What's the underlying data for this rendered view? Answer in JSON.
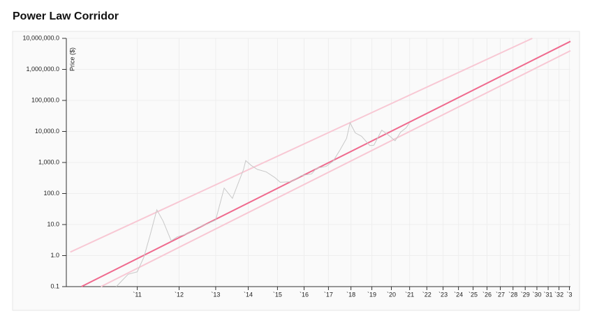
{
  "chart_data": {
    "type": "line",
    "title": "Power Law Corridor",
    "y_label": "Price ($)",
    "ylog": true,
    "xlog": true,
    "grid": true,
    "ylim": [
      0.1,
      10000000
    ],
    "yticks": [
      0.1,
      {
        "value": 1,
        "label": "1.0"
      },
      {
        "value": 10,
        "label": "10.0"
      },
      {
        "value": 100,
        "label": "100.0"
      },
      {
        "value": 1000,
        "label": "1,000.0"
      },
      {
        "value": 10000,
        "label": "10,000.0"
      },
      {
        "value": 100000,
        "label": "100,000.0"
      },
      {
        "value": 1000000,
        "label": "1,000,000.0"
      },
      {
        "value": 10000000,
        "label": "10,000,000.0"
      }
    ],
    "xlim": [
      2009.6,
      2033.1
    ],
    "xticks": [
      {
        "value": 2011,
        "label": "`11"
      },
      {
        "value": 2012,
        "label": "`12"
      },
      {
        "value": 2013,
        "label": "`13"
      },
      {
        "value": 2014,
        "label": "`14"
      },
      {
        "value": 2015,
        "label": "`15"
      },
      {
        "value": 2016,
        "label": "`16"
      },
      {
        "value": 2017,
        "label": "`17"
      },
      {
        "value": 2018,
        "label": "`18"
      },
      {
        "value": 2019,
        "label": "`19"
      },
      {
        "value": 2020,
        "label": "`20"
      },
      {
        "value": 2021,
        "label": "`21"
      },
      {
        "value": 2022,
        "label": "`22"
      },
      {
        "value": 2023,
        "label": "`23"
      },
      {
        "value": 2024,
        "label": "`24"
      },
      {
        "value": 2025,
        "label": "`25"
      },
      {
        "value": 2026,
        "label": "`26"
      },
      {
        "value": 2027,
        "label": "`27"
      },
      {
        "value": 2028,
        "label": "`28"
      },
      {
        "value": 2029,
        "label": "`29"
      },
      {
        "value": 2030,
        "label": "`30"
      },
      {
        "value": 2031,
        "label": "`31"
      },
      {
        "value": 2032,
        "label": "`32"
      },
      {
        "value": 2033,
        "label": "`3"
      }
    ],
    "series": [
      {
        "color": "#f8c8d4",
        "x": [
          2009.67,
          2029.6
        ],
        "values": [
          1.3,
          10000000
        ]
      },
      {
        "color": "#f8c8d4",
        "x": [
          2010.24,
          2033.1
        ],
        "values": [
          0.1,
          4000000
        ]
      },
      {
        "color": "#ef6a8e",
        "x": [
          2009.87,
          2033.1
        ],
        "values": [
          0.1,
          8000000
        ]
      },
      {
        "color": "#c8c8c8",
        "x": [
          2010.55,
          2010.8,
          2011.0,
          2011.15,
          2011.3,
          2011.45,
          2011.6,
          2011.8,
          2011.95,
          2012.2,
          2012.5,
          2012.8,
          2013.0,
          2013.25,
          2013.5,
          2013.85,
          2013.92,
          2014.1,
          2014.3,
          2014.6,
          2014.9,
          2015.1,
          2015.5,
          2015.9,
          2016.3,
          2016.5,
          2016.9,
          2017.2,
          2017.5,
          2017.8,
          2017.96,
          2018.2,
          2018.5,
          2018.9,
          2019.1,
          2019.5,
          2019.9,
          2020.2,
          2020.5,
          2020.8,
          2020.97
        ],
        "values": [
          0.1,
          0.25,
          0.3,
          0.9,
          5,
          30,
          13,
          3,
          4,
          5,
          8,
          11,
          14,
          150,
          70,
          600,
          1150,
          800,
          600,
          500,
          330,
          230,
          240,
          380,
          430,
          650,
          750,
          1100,
          2500,
          6000,
          19000,
          9000,
          7000,
          3500,
          3600,
          11000,
          7200,
          5000,
          9500,
          13000,
          18000
        ]
      }
    ]
  }
}
